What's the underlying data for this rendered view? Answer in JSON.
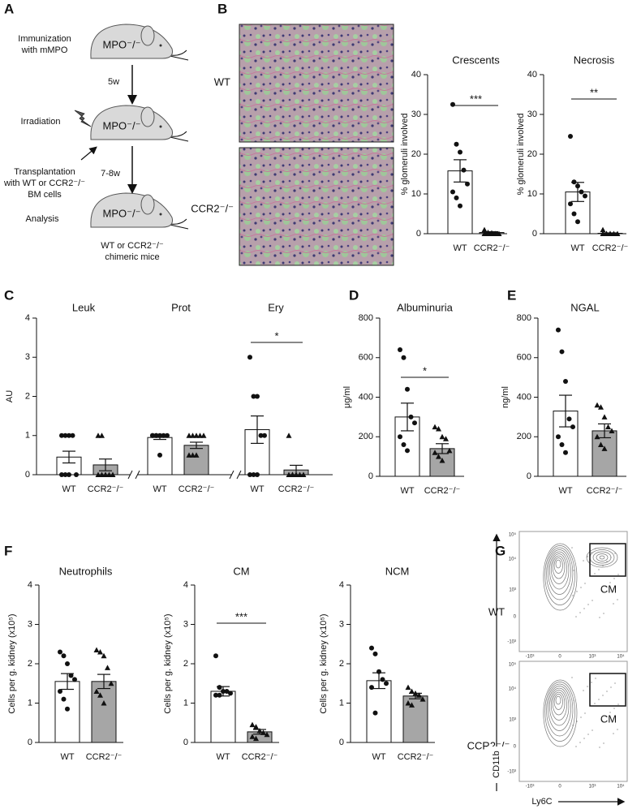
{
  "panel_labels": [
    "A",
    "B",
    "C",
    "D",
    "E",
    "F",
    "G"
  ],
  "diagram": {
    "steps": [
      {
        "lines": [
          "Immunization",
          "with mMPO"
        ]
      },
      {
        "lines": [
          "Irradiation"
        ]
      },
      {
        "lines": [
          "Transplantation",
          "with WT or CCR2⁻/⁻",
          "BM cells"
        ]
      },
      {
        "lines": [
          "Analysis"
        ]
      }
    ],
    "intervals": [
      "5w",
      "7-8w"
    ],
    "mouse_label": "MPO⁻/⁻",
    "outcome": [
      "WT or CCR2⁻/⁻",
      "chimeric mice"
    ]
  },
  "histology": {
    "rows": [
      "WT",
      "CCR2⁻/⁻"
    ]
  },
  "flow": {
    "rows": [
      "WT",
      "CCR2⁻/⁻"
    ],
    "gate": "CM",
    "ylabel": "CD11b",
    "xlabel": "Ly6C",
    "yticks": [
      "10⁵",
      "10⁴",
      "10³",
      "0",
      "-10³"
    ],
    "xticks": [
      "-10³",
      "0",
      "10³",
      "10⁴"
    ]
  },
  "chart_data": [
    {
      "type": "bar",
      "title": "Crescents",
      "ylabel": "% glomeruli involved",
      "categories": [
        "WT",
        "CCR2⁻/⁻"
      ],
      "values": [
        15.8,
        0.3
      ],
      "errors": [
        2.8,
        0.2
      ],
      "points": [
        [
          32.5,
          22.5,
          20.5,
          16,
          12.5,
          10.5,
          9,
          7
        ],
        [
          1,
          0.3,
          0.2,
          0,
          0,
          0,
          0,
          0
        ]
      ],
      "colors": [
        "#ffffff",
        "#a6a6a6"
      ],
      "markers": [
        "circle",
        "triangle"
      ],
      "ylim": [
        0,
        40
      ],
      "yticks": [
        0,
        10,
        20,
        30,
        40
      ],
      "significance": "***"
    },
    {
      "type": "bar",
      "title": "Necrosis",
      "ylabel": "% glomeruli involved",
      "categories": [
        "WT",
        "CCR2⁻/⁻"
      ],
      "values": [
        10.5,
        0.1
      ],
      "errors": [
        2.4,
        0.1
      ],
      "points": [
        [
          24.5,
          13,
          12,
          10.5,
          9.5,
          7.5,
          5,
          3
        ],
        [
          1,
          0,
          0,
          0,
          0,
          0,
          0,
          0
        ]
      ],
      "colors": [
        "#ffffff",
        "#a6a6a6"
      ],
      "markers": [
        "circle",
        "triangle"
      ],
      "ylim": [
        0,
        40
      ],
      "yticks": [
        0,
        10,
        20,
        30,
        40
      ],
      "significance": "**"
    },
    {
      "type": "grouped_bar",
      "ylabel": "AU",
      "ylim": [
        0,
        4
      ],
      "yticks": [
        0,
        1,
        2,
        3,
        4
      ],
      "colors": [
        "#ffffff",
        "#a6a6a6"
      ],
      "markers": [
        "circle",
        "triangle"
      ],
      "groups": [
        {
          "title": "Leuk",
          "categories": [
            "WT",
            "CCR2⁻/⁻"
          ],
          "values": [
            0.45,
            0.25
          ],
          "errors": [
            0.15,
            0.15
          ],
          "points": [
            [
              1,
              1,
              1,
              1,
              0,
              0,
              0,
              0
            ],
            [
              1,
              1,
              0,
              0,
              0,
              0,
              0,
              0
            ]
          ]
        },
        {
          "title": "Prot",
          "categories": [
            "WT",
            "CCR2⁻/⁻"
          ],
          "values": [
            0.95,
            0.75
          ],
          "errors": [
            0.05,
            0.08
          ],
          "points": [
            [
              1,
              1,
              1,
              1,
              1,
              1,
              1,
              0.5
            ],
            [
              1,
              1,
              1,
              1,
              1,
              0.5,
              0.5,
              0.5
            ]
          ]
        },
        {
          "title": "Ery",
          "categories": [
            "WT",
            "CCR2⁻/⁻"
          ],
          "values": [
            1.15,
            0.12
          ],
          "errors": [
            0.35,
            0.12
          ],
          "points": [
            [
              3,
              2,
              2,
              1,
              1,
              0,
              0,
              0
            ],
            [
              1,
              0,
              0,
              0,
              0,
              0,
              0,
              0
            ]
          ],
          "significance": "*"
        }
      ]
    },
    {
      "type": "bar",
      "title": "Albuminuria",
      "ylabel": "μg/ml",
      "categories": [
        "WT",
        "CCR2⁻/⁻"
      ],
      "values": [
        300,
        140
      ],
      "errors": [
        70,
        25
      ],
      "points": [
        [
          640,
          600,
          440,
          300,
          270,
          200,
          160,
          130
        ],
        [
          250,
          240,
          200,
          190,
          130,
          120,
          100,
          80
        ]
      ],
      "colors": [
        "#ffffff",
        "#a6a6a6"
      ],
      "markers": [
        "circle",
        "triangle"
      ],
      "ylim": [
        0,
        800
      ],
      "yticks": [
        0,
        200,
        400,
        600,
        800
      ],
      "significance": "*"
    },
    {
      "type": "bar",
      "title": "NGAL",
      "ylabel": "ng/ml",
      "categories": [
        "WT",
        "CCR2⁻/⁻"
      ],
      "values": [
        330,
        230
      ],
      "errors": [
        80,
        35
      ],
      "points": [
        [
          740,
          630,
          480,
          290,
          250,
          200,
          160,
          120
        ],
        [
          360,
          350,
          300,
          250,
          230,
          200,
          160,
          140
        ]
      ],
      "colors": [
        "#ffffff",
        "#a6a6a6"
      ],
      "markers": [
        "circle",
        "triangle"
      ],
      "ylim": [
        0,
        800
      ],
      "yticks": [
        0,
        200,
        400,
        600,
        800
      ]
    },
    {
      "type": "bar",
      "title": "Neutrophils",
      "ylabel": "Cells per g. kidney (x10⁵)",
      "categories": [
        "WT",
        "CCR2⁻/⁻"
      ],
      "values": [
        1.55,
        1.55
      ],
      "errors": [
        0.2,
        0.18
      ],
      "points": [
        [
          2.3,
          2.2,
          2.0,
          1.7,
          1.6,
          1.3,
          1.1,
          0.85
        ],
        [
          2.35,
          2.3,
          2.2,
          1.9,
          1.5,
          1.3,
          1.2,
          1.0
        ]
      ],
      "colors": [
        "#ffffff",
        "#a6a6a6"
      ],
      "markers": [
        "circle",
        "triangle"
      ],
      "ylim": [
        0,
        4
      ],
      "yticks": [
        0,
        1,
        2,
        3,
        4
      ]
    },
    {
      "type": "bar",
      "title": "CM",
      "ylabel": "Cells per g. kidney (x10⁵)",
      "categories": [
        "WT",
        "CCR2⁻/⁻"
      ],
      "values": [
        1.3,
        0.27
      ],
      "errors": [
        0.12,
        0.06
      ],
      "points": [
        [
          2.2,
          1.4,
          1.3,
          1.3,
          1.25,
          1.2,
          1.2
        ],
        [
          0.45,
          0.4,
          0.3,
          0.25,
          0.2,
          0.15,
          0.1
        ]
      ],
      "colors": [
        "#ffffff",
        "#a6a6a6"
      ],
      "markers": [
        "circle",
        "triangle"
      ],
      "ylim": [
        0,
        4
      ],
      "yticks": [
        0,
        1,
        2,
        3,
        4
      ],
      "significance": "***"
    },
    {
      "type": "bar",
      "title": "NCM",
      "ylabel": "Cells per g. kidney (x10⁵)",
      "categories": [
        "WT",
        "CCR2⁻/⁻"
      ],
      "values": [
        1.57,
        1.18
      ],
      "errors": [
        0.2,
        0.07
      ],
      "points": [
        [
          2.4,
          2.25,
          1.8,
          1.6,
          1.5,
          1.4,
          0.75
        ],
        [
          1.4,
          1.3,
          1.25,
          1.2,
          1.1,
          1.0,
          0.95
        ]
      ],
      "colors": [
        "#ffffff",
        "#a6a6a6"
      ],
      "markers": [
        "circle",
        "triangle"
      ],
      "ylim": [
        0,
        4
      ],
      "yticks": [
        0,
        1,
        2,
        3,
        4
      ]
    }
  ]
}
